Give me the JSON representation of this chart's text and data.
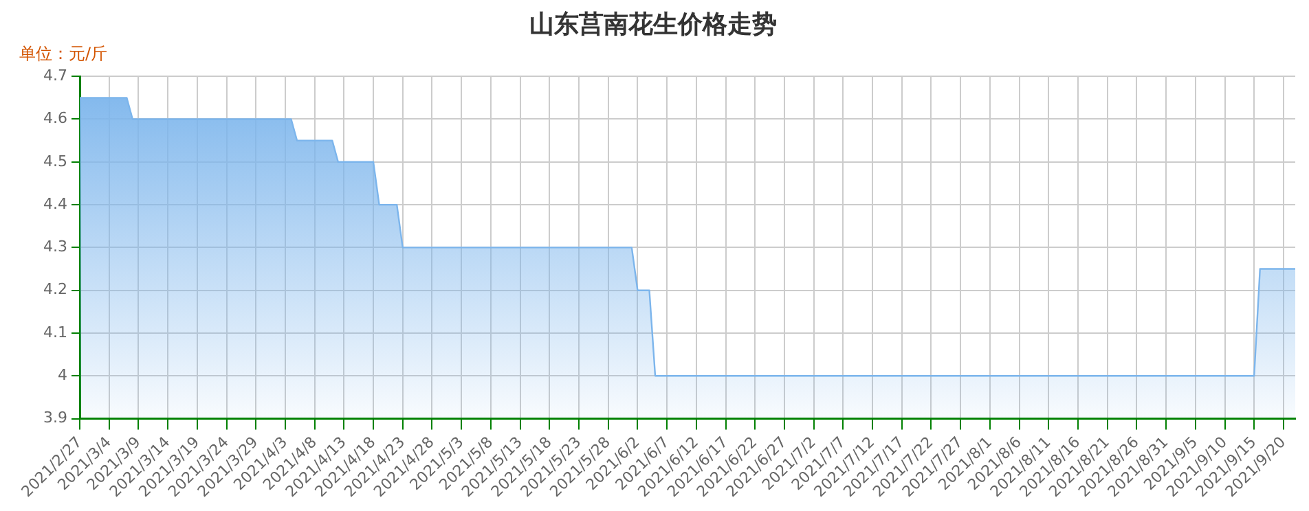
{
  "chart_data": {
    "type": "area",
    "title": "山东莒南花生价格走势",
    "ylabel": "单位：元/斤",
    "x": [
      "2021-02-27",
      "2021-03-07",
      "2021-03-08",
      "2021-04-04",
      "2021-04-05",
      "2021-04-11",
      "2021-04-12",
      "2021-04-18",
      "2021-04-19",
      "2021-04-22",
      "2021-04-23",
      "2021-06-01",
      "2021-06-02",
      "2021-06-04",
      "2021-06-05",
      "2021-09-15",
      "2021-09-16",
      "2021-09-22"
    ],
    "series": [
      {
        "color": "#7cb5ec",
        "values": [
          4.65,
          4.65,
          4.6,
          4.6,
          4.55,
          4.55,
          4.5,
          4.5,
          4.4,
          4.4,
          4.3,
          4.3,
          4.2,
          4.2,
          4.0,
          4.0,
          4.25,
          4.25
        ]
      }
    ],
    "xlim": [
      "2021-02-27",
      "2021-09-22"
    ],
    "xticks": [
      {
        "value": "2021-02-27",
        "label": "2021/2/27"
      },
      {
        "value": "2021-03-04",
        "label": "2021/3/4"
      },
      {
        "value": "2021-03-09",
        "label": "2021/3/9"
      },
      {
        "value": "2021-03-14",
        "label": "2021/3/14"
      },
      {
        "value": "2021-03-19",
        "label": "2021/3/19"
      },
      {
        "value": "2021-03-24",
        "label": "2021/3/24"
      },
      {
        "value": "2021-03-29",
        "label": "2021/3/29"
      },
      {
        "value": "2021-04-03",
        "label": "2021/4/3"
      },
      {
        "value": "2021-04-08",
        "label": "2021/4/8"
      },
      {
        "value": "2021-04-13",
        "label": "2021/4/13"
      },
      {
        "value": "2021-04-18",
        "label": "2021/4/18"
      },
      {
        "value": "2021-04-23",
        "label": "2021/4/23"
      },
      {
        "value": "2021-04-28",
        "label": "2021/4/28"
      },
      {
        "value": "2021-05-03",
        "label": "2021/5/3"
      },
      {
        "value": "2021-05-08",
        "label": "2021/5/8"
      },
      {
        "value": "2021-05-13",
        "label": "2021/5/13"
      },
      {
        "value": "2021-05-18",
        "label": "2021/5/18"
      },
      {
        "value": "2021-05-23",
        "label": "2021/5/23"
      },
      {
        "value": "2021-05-28",
        "label": "2021/5/28"
      },
      {
        "value": "2021-06-02",
        "label": "2021/6/2"
      },
      {
        "value": "2021-06-07",
        "label": "2021/6/7"
      },
      {
        "value": "2021-06-12",
        "label": "2021/6/12"
      },
      {
        "value": "2021-06-17",
        "label": "2021/6/17"
      },
      {
        "value": "2021-06-22",
        "label": "2021/6/22"
      },
      {
        "value": "2021-06-27",
        "label": "2021/6/27"
      },
      {
        "value": "2021-07-02",
        "label": "2021/7/2"
      },
      {
        "value": "2021-07-07",
        "label": "2021/7/7"
      },
      {
        "value": "2021-07-12",
        "label": "2021/7/12"
      },
      {
        "value": "2021-07-17",
        "label": "2021/7/17"
      },
      {
        "value": "2021-07-22",
        "label": "2021/7/22"
      },
      {
        "value": "2021-07-27",
        "label": "2021/7/27"
      },
      {
        "value": "2021-08-01",
        "label": "2021/8/1"
      },
      {
        "value": "2021-08-06",
        "label": "2021/8/6"
      },
      {
        "value": "2021-08-11",
        "label": "2021/8/11"
      },
      {
        "value": "2021-08-16",
        "label": "2021/8/16"
      },
      {
        "value": "2021-08-21",
        "label": "2021/8/21"
      },
      {
        "value": "2021-08-26",
        "label": "2021/8/26"
      },
      {
        "value": "2021-08-31",
        "label": "2021/8/31"
      },
      {
        "value": "2021-09-05",
        "label": "2021/9/5"
      },
      {
        "value": "2021-09-10",
        "label": "2021/9/10"
      },
      {
        "value": "2021-09-15",
        "label": "2021/9/15"
      },
      {
        "value": "2021-09-20",
        "label": "2021/9/20"
      }
    ],
    "ylim": [
      3.9,
      4.7
    ],
    "yticks": [
      3.9,
      4,
      4.1,
      4.2,
      4.3,
      4.4,
      4.5,
      4.6,
      4.7
    ],
    "grid": true,
    "legend": false,
    "marker": "none"
  }
}
